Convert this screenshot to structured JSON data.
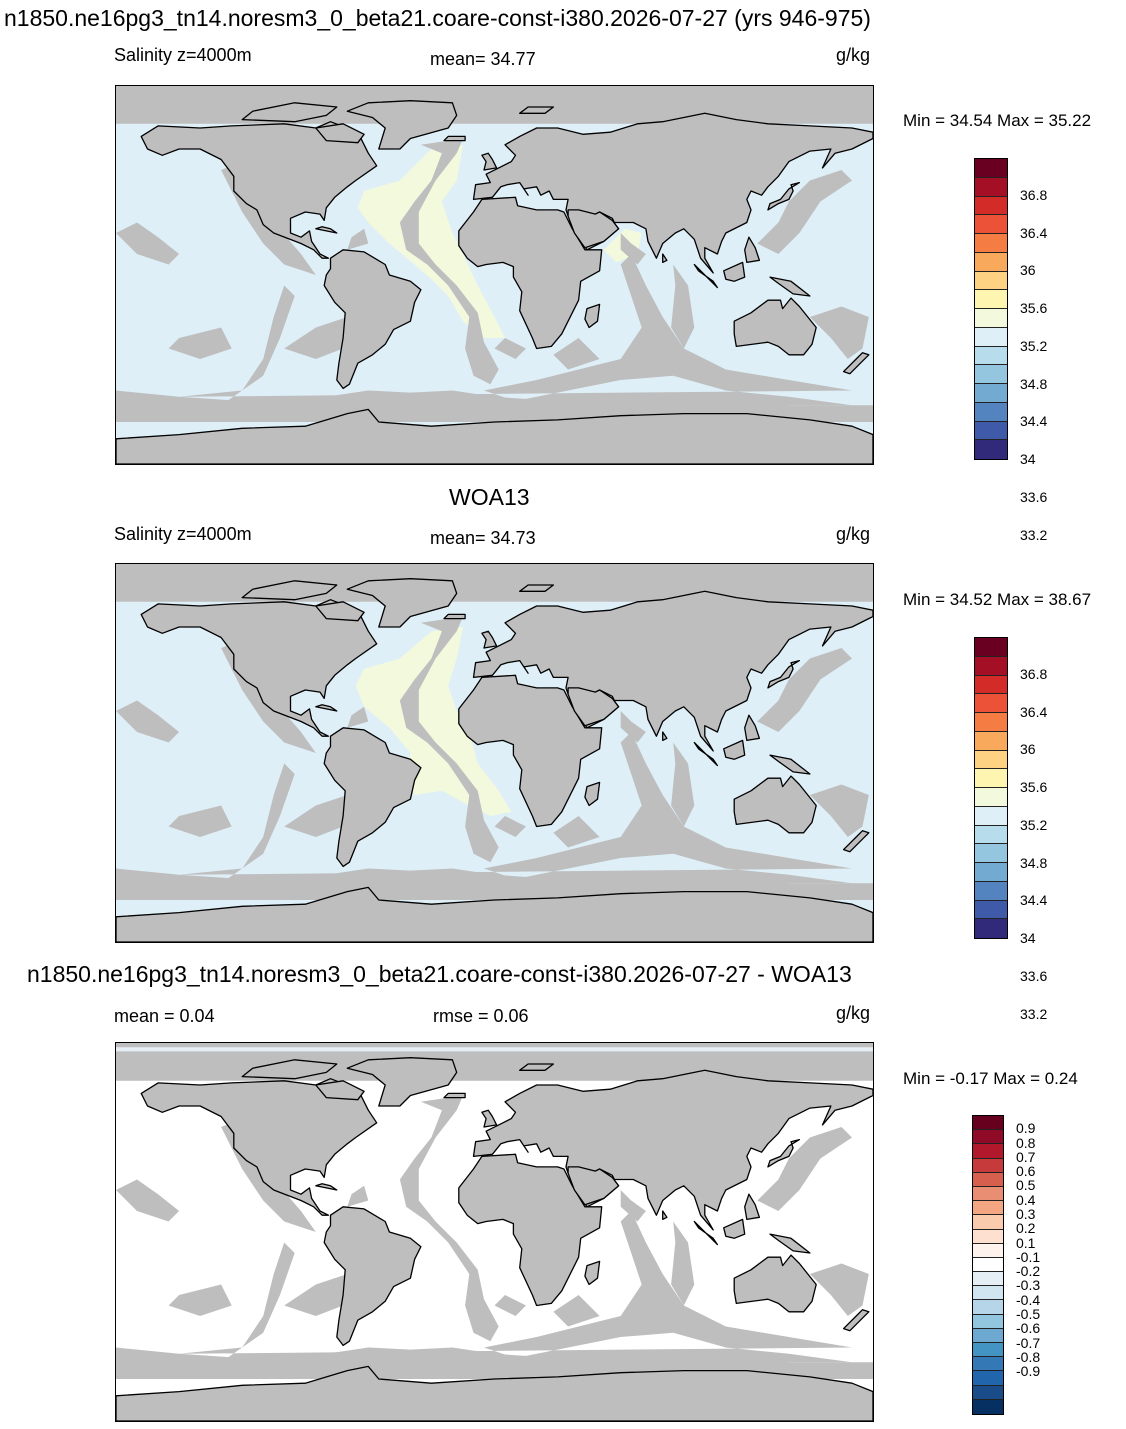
{
  "header": {
    "title": "n1850.ne16pg3_tn14.noresm3_0_beta21.coare-const-i380.2026-07-27 (yrs 946-975)"
  },
  "panels": [
    {
      "left_label": "Salinity z=4000m",
      "center_label": "mean=  34.77",
      "units": "g/kg",
      "minmax": "Min =  34.54 Max =  35.22",
      "colorbar_id": "abs"
    },
    {
      "heading": "WOA13",
      "left_label": "Salinity z=4000m",
      "center_label": "mean=  34.73",
      "units": "g/kg",
      "minmax": "Min =  34.52 Max =  38.67",
      "colorbar_id": "abs"
    },
    {
      "heading": "n1850.ne16pg3_tn14.noresm3_0_beta21.coare-const-i380.2026-07-27 - WOA13",
      "left_label": "mean =   0.04",
      "center_label": "rmse =   0.06",
      "units": "g/kg",
      "minmax": "Min =  -0.17 Max =   0.24",
      "colorbar_id": "diff"
    }
  ],
  "colorbars": {
    "abs": {
      "colors": [
        "#6a0021",
        "#a50f26",
        "#d22b28",
        "#ec5238",
        "#f57d44",
        "#f9a95c",
        "#fdd383",
        "#fef5b0",
        "#f3f9dd",
        "#deeff8",
        "#b7dcec",
        "#95c6e0",
        "#72aad1",
        "#5484bf",
        "#3f5aa8",
        "#312a7a"
      ],
      "labels": [
        "36.8",
        "36.4",
        "36",
        "35.6",
        "35.2",
        "34.8",
        "34.4",
        "34",
        "33.6",
        "33.2"
      ]
    },
    "diff": {
      "colors": [
        "#67001f",
        "#8e0a26",
        "#b2182b",
        "#c73a3b",
        "#d6604d",
        "#ea8e73",
        "#f4a582",
        "#fbcbae",
        "#fde0d0",
        "#fdf2ec",
        "#ffffff",
        "#e5eef5",
        "#d1e5f0",
        "#b6d5e8",
        "#92c5de",
        "#6ca8d0",
        "#4393c3",
        "#3479b6",
        "#2166ac",
        "#1a4c8a",
        "#053061"
      ],
      "labels": [
        "0.9",
        "0.8",
        "0.7",
        "0.6",
        "0.5",
        "0.4",
        "0.3",
        "0.2",
        "0.1",
        "-0.1",
        "-0.2",
        "-0.3",
        "-0.4",
        "-0.5",
        "-0.6",
        "-0.7",
        "-0.8",
        "-0.9"
      ]
    }
  },
  "map_colors": {
    "land": "#bebebe",
    "ocean_panel1": "#deeff8",
    "ocean_panel2": "#deeff8",
    "ocean_panel3": "#ffffff",
    "atlantic_panel1": "#f3f9dd",
    "atlantic_panel2": "#f3f9dd",
    "ridge": "#bebebe"
  }
}
